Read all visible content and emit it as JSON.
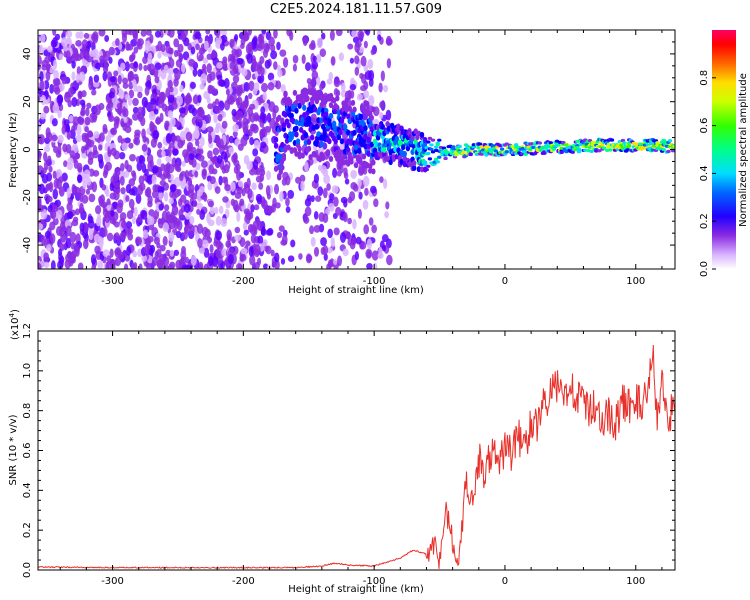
{
  "figure": {
    "title": "C2E5.2024.181.11.57.G09"
  },
  "colors": {
    "snr_line": "#e8302a",
    "colormap": [
      "#ffffff",
      "#d9b3ff",
      "#8a2be2",
      "#5a00ff",
      "#0a00ff",
      "#0066ff",
      "#00ddff",
      "#00ff88",
      "#33ff00",
      "#ccff00",
      "#ffdd00",
      "#ff6600",
      "#ff0000",
      "#ff0066"
    ]
  },
  "chart_data": [
    {
      "type": "heatmap",
      "xlabel": "Height of straight line (km)",
      "ylabel": "Frequency (Hz)",
      "xlim": [
        -357,
        130
      ],
      "ylim": [
        -50,
        50
      ],
      "xticks": [
        "-300",
        "-200",
        "-100",
        "0",
        "100"
      ],
      "yticks": [
        "-40",
        "-20",
        "0",
        "20",
        "40"
      ],
      "colorbar": {
        "label": "Normalized spectral amplitude",
        "ticks": [
          "0.0",
          "0.2",
          "0.4",
          "0.6",
          "0.8"
        ],
        "range": [
          0,
          1
        ]
      },
      "ridge": {
        "description_free": true,
        "x": [
          -170,
          -150,
          -130,
          -110,
          -90,
          -70,
          -55,
          -40,
          -20,
          0,
          20,
          40,
          60,
          80,
          100,
          115,
          130
        ],
        "y": [
          10,
          11,
          8,
          6,
          3,
          0,
          -2,
          -1,
          0,
          0,
          0.5,
          1,
          1.5,
          2,
          1.5,
          2,
          1
        ]
      }
    },
    {
      "type": "line",
      "xlabel": "Height of straight line (km)",
      "ylabel": "SNR (10 * v/v)",
      "yscale_label": "(x10",
      "yscale_exp": "4",
      "yscale_close": ")",
      "xlim": [
        -357,
        130
      ],
      "ylim": [
        0,
        1.2
      ],
      "xticks": [
        "-300",
        "-200",
        "-100",
        "0",
        "100"
      ],
      "yticks": [
        "0.0",
        "0.2",
        "0.4",
        "0.6",
        "0.8",
        "1.0",
        "1.2"
      ],
      "series": [
        {
          "x": [
            -357,
            -300,
            -250,
            -200,
            -160,
            -140,
            -130,
            -120,
            -100,
            -80,
            -70,
            -60,
            -55,
            -50,
            -45,
            -40,
            -35,
            -30,
            -25,
            -20,
            -15,
            -10,
            -5,
            0,
            5,
            10,
            15,
            20,
            25,
            30,
            35,
            40,
            45,
            50,
            55,
            60,
            65,
            70,
            75,
            80,
            85,
            90,
            95,
            100,
            105,
            110,
            113,
            116,
            120,
            125,
            130
          ],
          "y": [
            0.015,
            0.012,
            0.012,
            0.012,
            0.012,
            0.02,
            0.035,
            0.025,
            0.02,
            0.06,
            0.1,
            0.08,
            0.14,
            0.06,
            0.3,
            0.14,
            0.03,
            0.45,
            0.35,
            0.55,
            0.48,
            0.6,
            0.52,
            0.62,
            0.58,
            0.68,
            0.6,
            0.76,
            0.72,
            0.85,
            0.88,
            0.92,
            0.87,
            0.95,
            0.86,
            0.84,
            0.8,
            0.82,
            0.76,
            0.78,
            0.74,
            0.84,
            0.83,
            0.85,
            0.82,
            0.9,
            1.15,
            0.75,
            0.95,
            0.78,
            0.8
          ]
        }
      ]
    }
  ]
}
